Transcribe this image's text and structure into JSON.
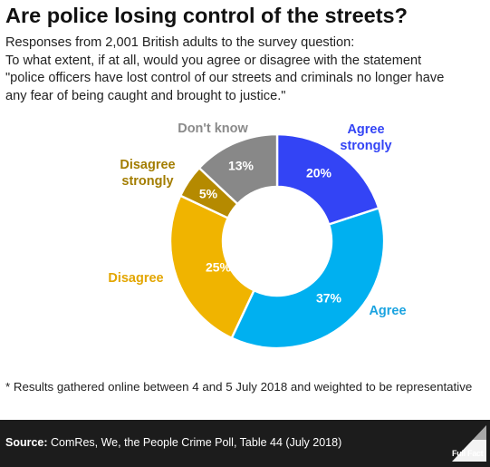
{
  "title": "Are police losing control of the streets?",
  "subtitle_lines": [
    "Responses from 2,001 British adults to the survey question:",
    "To what extent, if at all, would you agree or disagree with the statement",
    "\"police officers have lost control of our streets and criminals no longer have",
    "any fear of being caught and brought to justice.\""
  ],
  "chart_data": {
    "type": "pie",
    "donut": true,
    "slices": [
      {
        "label_lines": [
          "Agree",
          "strongly"
        ],
        "value": 20,
        "value_label": "20%",
        "color": "#3344f5",
        "label_color": "#3344f5"
      },
      {
        "label_lines": [
          "Agree"
        ],
        "value": 37,
        "value_label": "37%",
        "color": "#00b0f0",
        "label_color": "#1aa3e0"
      },
      {
        "label_lines": [
          "Disagree"
        ],
        "value": 25,
        "value_label": "25%",
        "color": "#f0b400",
        "label_color": "#e3a600"
      },
      {
        "label_lines": [
          "Disagree",
          "strongly"
        ],
        "value": 5,
        "value_label": "5%",
        "color": "#b58a00",
        "label_color": "#a37d00"
      },
      {
        "label_lines": [
          "Don't know"
        ],
        "value": 13,
        "value_label": "13%",
        "color": "#888888",
        "label_color": "#8a8a8a"
      }
    ]
  },
  "footnote": "* Results gathered online between 4 and 5 July 2018 and weighted to be representative",
  "source": {
    "label": "Source:",
    "text": "ComRes, We, the People Crime Poll, Table 44 (July 2018)"
  },
  "logo": {
    "icon": "full-fact-logo-icon",
    "text": "Full Fact"
  }
}
